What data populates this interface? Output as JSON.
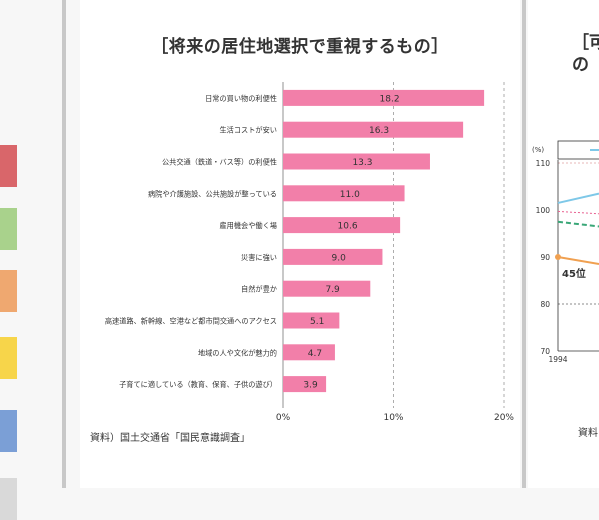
{
  "left_swatches": [
    "#d9666a",
    "#a9d28c",
    "#efa870",
    "#f7d54a",
    "#7b9fd6",
    "#d9d9d9"
  ],
  "main_chart": {
    "title": "［将来の居住地選択で重視するもの］",
    "source": "資料）国土交通省「国民意識調査」",
    "chart_data": {
      "type": "bar",
      "orientation": "horizontal",
      "categories": [
        "日常の買い物の利便性",
        "生活コストが安い",
        "公共交通（鉄道・バス等）の利便性",
        "病院や介護施設、公共施設が整っている",
        "雇用機会や働く場",
        "災害に強い",
        "自然が豊か",
        "高速道路、新幹線、空港など都市間交通へのアクセス",
        "地域の人や文化が魅力的",
        "子育てに適している（教育、保育、子供の遊び）"
      ],
      "values": [
        18.2,
        16.3,
        13.3,
        11.0,
        10.6,
        9.0,
        7.9,
        5.1,
        4.7,
        3.9
      ],
      "value_labels": [
        "18.2",
        "16.3",
        "13.3",
        "11.0",
        "10.6",
        "9.0",
        "7.9",
        "5.1",
        "4.7",
        "3.9"
      ],
      "xlim": [
        0,
        20
      ],
      "x_ticks": [
        0,
        10,
        20
      ],
      "x_tick_labels": [
        "0%",
        "10%",
        "20%"
      ],
      "bar_color": "#f27fa9",
      "gridlines": "dashed vertical"
    }
  },
  "side_chart": {
    "title_lines": [
      "［可",
      "の"
    ],
    "source": "資料",
    "ylabel": "(%)",
    "y_ticks": [
      70,
      80,
      90,
      100,
      110
    ],
    "x_tick_labels": [
      "1994"
    ],
    "annotation": "45位",
    "colors": {
      "blue": "#7ec8e8",
      "green": "#3aa778",
      "orange": "#f0a050",
      "pink": "#e86090"
    }
  }
}
